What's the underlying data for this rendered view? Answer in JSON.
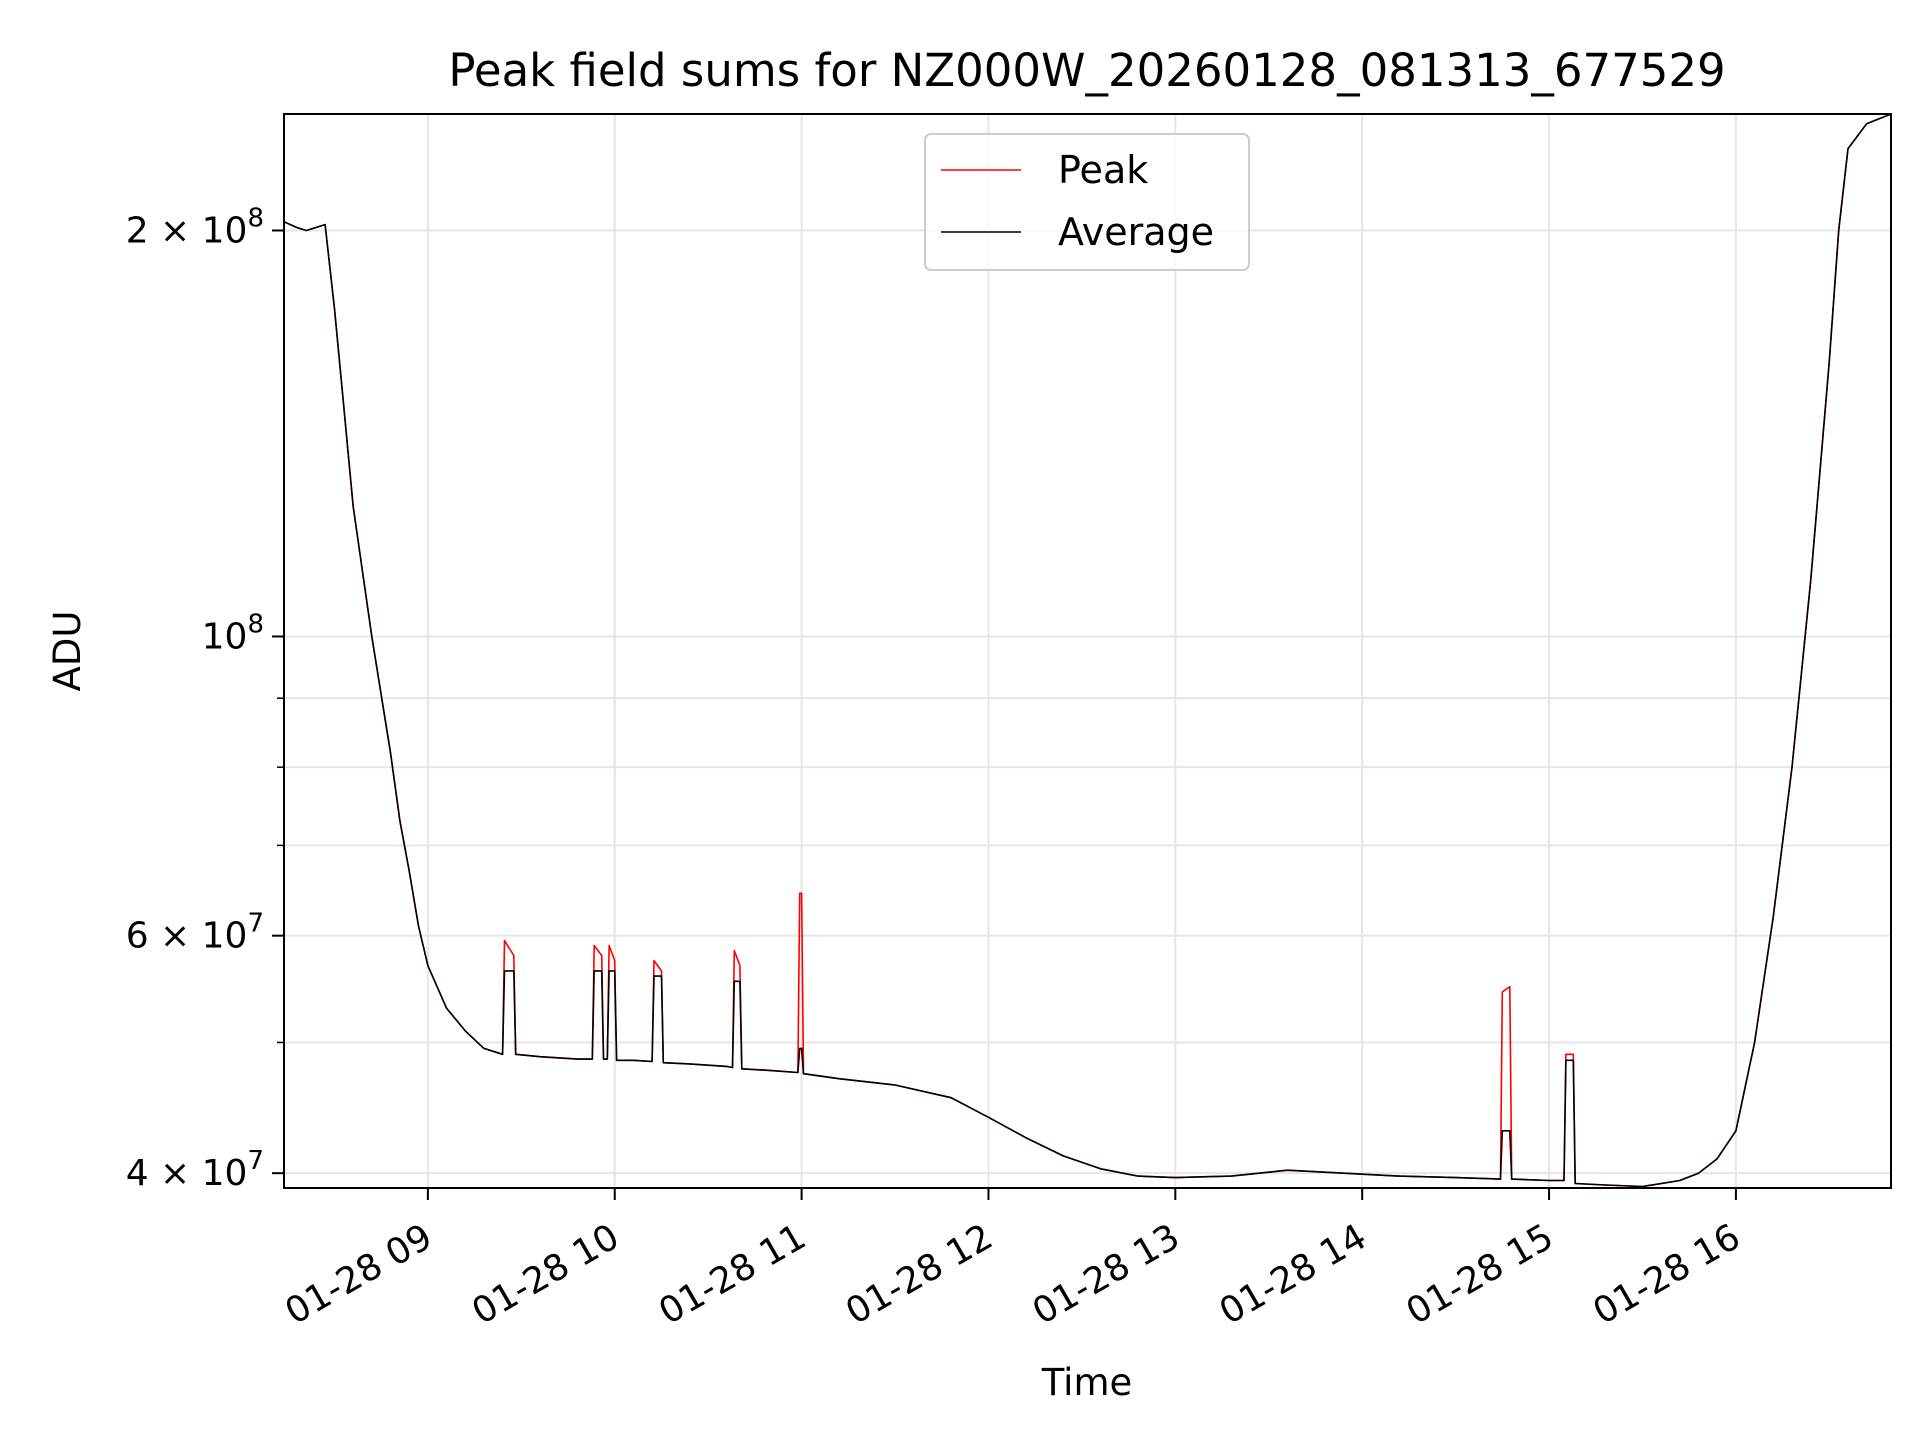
{
  "chart_data": {
    "type": "line",
    "title": "Peak field sums for NZ000W_20260128_081313_677529",
    "xlabel": "Time",
    "ylabel": "ADU",
    "yscale": "log",
    "xlim": [
      8.23,
      16.83
    ],
    "ylim": [
      39000000,
      244000000
    ],
    "grid": true,
    "legend_location": "upper center",
    "x_ticks": [
      {
        "value": 9,
        "label": "01-28 09"
      },
      {
        "value": 10,
        "label": "01-28 10"
      },
      {
        "value": 11,
        "label": "01-28 11"
      },
      {
        "value": 12,
        "label": "01-28 12"
      },
      {
        "value": 13,
        "label": "01-28 13"
      },
      {
        "value": 14,
        "label": "01-28 14"
      },
      {
        "value": 15,
        "label": "01-28 15"
      },
      {
        "value": 16,
        "label": "01-28 16"
      }
    ],
    "y_ticks": [
      {
        "value": 40000000,
        "mantissa": "4",
        "exponent": "7"
      },
      {
        "value": 60000000,
        "mantissa": "6",
        "exponent": "7"
      },
      {
        "value": 100000000,
        "mantissa": "",
        "exponent": "8"
      },
      {
        "value": 200000000,
        "mantissa": "2",
        "exponent": "8"
      }
    ],
    "y_minor_ticks": [
      50000000,
      70000000,
      80000000,
      90000000,
      300000000
    ],
    "x_unit": "hours (local time on 01-28)",
    "series": [
      {
        "name": "Average",
        "color": "#000000",
        "x": [
          8.23,
          8.3,
          8.35,
          8.45,
          8.5,
          8.55,
          8.6,
          8.7,
          8.8,
          8.85,
          8.9,
          8.95,
          9.0,
          9.1,
          9.2,
          9.3,
          9.4,
          9.41,
          9.46,
          9.47,
          9.6,
          9.8,
          9.88,
          9.89,
          9.93,
          9.94,
          9.96,
          9.97,
          10.0,
          10.01,
          10.1,
          10.2,
          10.21,
          10.25,
          10.26,
          10.4,
          10.6,
          10.63,
          10.64,
          10.67,
          10.68,
          10.8,
          10.98,
          10.99,
          11.0,
          11.01,
          11.2,
          11.5,
          11.8,
          12.0,
          12.2,
          12.4,
          12.6,
          12.8,
          13.0,
          13.3,
          13.6,
          13.9,
          14.2,
          14.5,
          14.74,
          14.75,
          14.79,
          14.8,
          15.0,
          15.08,
          15.09,
          15.13,
          15.14,
          15.3,
          15.5,
          15.7,
          15.8,
          15.9,
          16.0,
          16.1,
          16.2,
          16.3,
          16.4,
          16.5,
          16.55,
          16.6,
          16.7,
          16.83
        ],
        "values": [
          203000000,
          201000000,
          200000000,
          202000000,
          175000000,
          148000000,
          125000000,
          100000000,
          82000000,
          73000000,
          67000000,
          61000000,
          57000000,
          53000000,
          51000000,
          49500000,
          49000000,
          56500000,
          56500000,
          49000000,
          48800000,
          48600000,
          48600000,
          56500000,
          56500000,
          48600000,
          48600000,
          56500000,
          56500000,
          48500000,
          48500000,
          48400000,
          56000000,
          56000000,
          48300000,
          48200000,
          48000000,
          47900000,
          55500000,
          55500000,
          47800000,
          47700000,
          47500000,
          49500000,
          49500000,
          47400000,
          47000000,
          46500000,
          45500000,
          44000000,
          42500000,
          41200000,
          40300000,
          39800000,
          39700000,
          39800000,
          40200000,
          40000000,
          39800000,
          39700000,
          39600000,
          43000000,
          43000000,
          39600000,
          39500000,
          39500000,
          48500000,
          48500000,
          39300000,
          39200000,
          39100000,
          39500000,
          40000000,
          41000000,
          43000000,
          50000000,
          62000000,
          80000000,
          110000000,
          160000000,
          200000000,
          230000000,
          240000000,
          244000000
        ]
      },
      {
        "name": "Peak",
        "color": "#ff0000",
        "x": [
          8.23,
          8.3,
          8.35,
          8.45,
          8.5,
          8.55,
          8.6,
          8.7,
          8.8,
          8.85,
          8.9,
          8.95,
          9.0,
          9.1,
          9.2,
          9.3,
          9.4,
          9.41,
          9.46,
          9.47,
          9.6,
          9.8,
          9.88,
          9.89,
          9.93,
          9.94,
          9.96,
          9.97,
          10.0,
          10.01,
          10.1,
          10.2,
          10.21,
          10.25,
          10.26,
          10.4,
          10.6,
          10.63,
          10.64,
          10.67,
          10.68,
          10.8,
          10.98,
          10.99,
          11.0,
          11.01,
          11.2,
          11.5,
          11.8,
          12.0,
          12.2,
          12.4,
          12.6,
          12.8,
          13.0,
          13.3,
          13.6,
          13.9,
          14.2,
          14.5,
          14.74,
          14.75,
          14.79,
          14.8,
          15.0,
          15.08,
          15.09,
          15.13,
          15.14,
          15.3,
          15.5,
          15.7,
          15.8,
          15.9,
          16.0,
          16.1,
          16.2,
          16.3,
          16.4,
          16.5,
          16.55,
          16.6,
          16.7,
          16.83
        ],
        "values": [
          203000000,
          201000000,
          200000000,
          202000000,
          175000000,
          148000000,
          125000000,
          100000000,
          82000000,
          73000000,
          67000000,
          61000000,
          57000000,
          53000000,
          51000000,
          49500000,
          49000000,
          59500000,
          58000000,
          49000000,
          48800000,
          48600000,
          48600000,
          59000000,
          58000000,
          48600000,
          48600000,
          59000000,
          57500000,
          48500000,
          48500000,
          48400000,
          57500000,
          56500000,
          48300000,
          48200000,
          48000000,
          47900000,
          58500000,
          57000000,
          47800000,
          47700000,
          47500000,
          64500000,
          64500000,
          47400000,
          47000000,
          46500000,
          45500000,
          44000000,
          42500000,
          41200000,
          40300000,
          39800000,
          39700000,
          39800000,
          40200000,
          40000000,
          39800000,
          39700000,
          39600000,
          54500000,
          55000000,
          39600000,
          39500000,
          39500000,
          49000000,
          49000000,
          39300000,
          39200000,
          39100000,
          39500000,
          40000000,
          41000000,
          43000000,
          50000000,
          62000000,
          80000000,
          110000000,
          160000000,
          200000000,
          230000000,
          240000000,
          244000000
        ]
      }
    ]
  }
}
